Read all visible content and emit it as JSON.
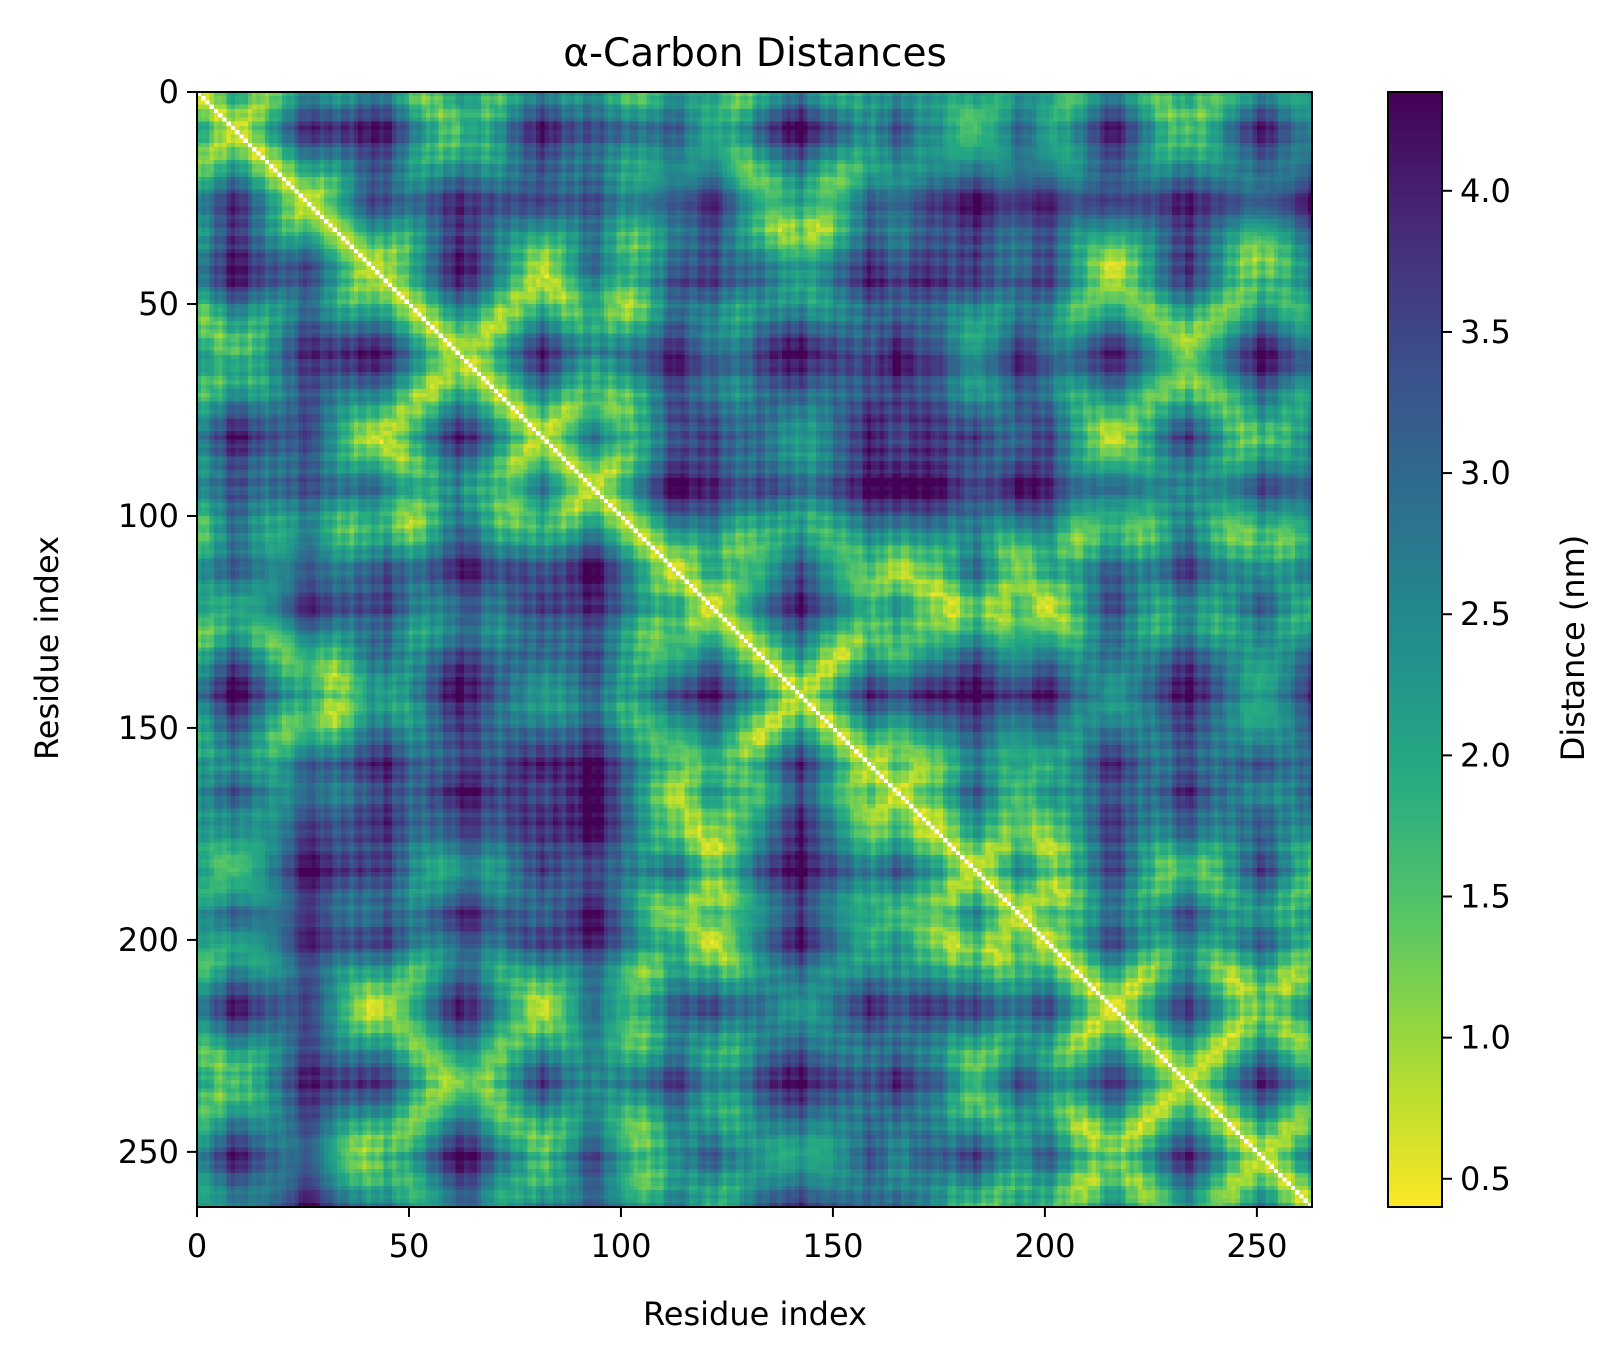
{
  "chart_data": {
    "type": "heatmap",
    "title": "α-Carbon Distances",
    "xlabel": "Residue index",
    "ylabel": "Residue index",
    "n_residues": 263,
    "xlim": [
      0,
      263
    ],
    "ylim": [
      263,
      0
    ],
    "x_ticks": [
      0,
      50,
      100,
      150,
      200,
      250
    ],
    "y_ticks": [
      0,
      50,
      100,
      150,
      200,
      250
    ],
    "colorbar": {
      "label": "Distance (nm)",
      "colormap": "viridis_r",
      "range": [
        0.4,
        4.35
      ],
      "ticks": [
        0.5,
        1.0,
        1.5,
        2.0,
        2.5,
        3.0,
        3.5,
        4.0
      ],
      "tick_labels": [
        "0.5",
        "1.0",
        "1.5",
        "2.0",
        "2.5",
        "3.0",
        "3.5",
        "4.0"
      ]
    },
    "diagonal": "white (masked, distance 0)",
    "low_distance_color": "#fde725",
    "high_distance_color": "#440154",
    "grid": false,
    "legend": "colorbar right"
  }
}
